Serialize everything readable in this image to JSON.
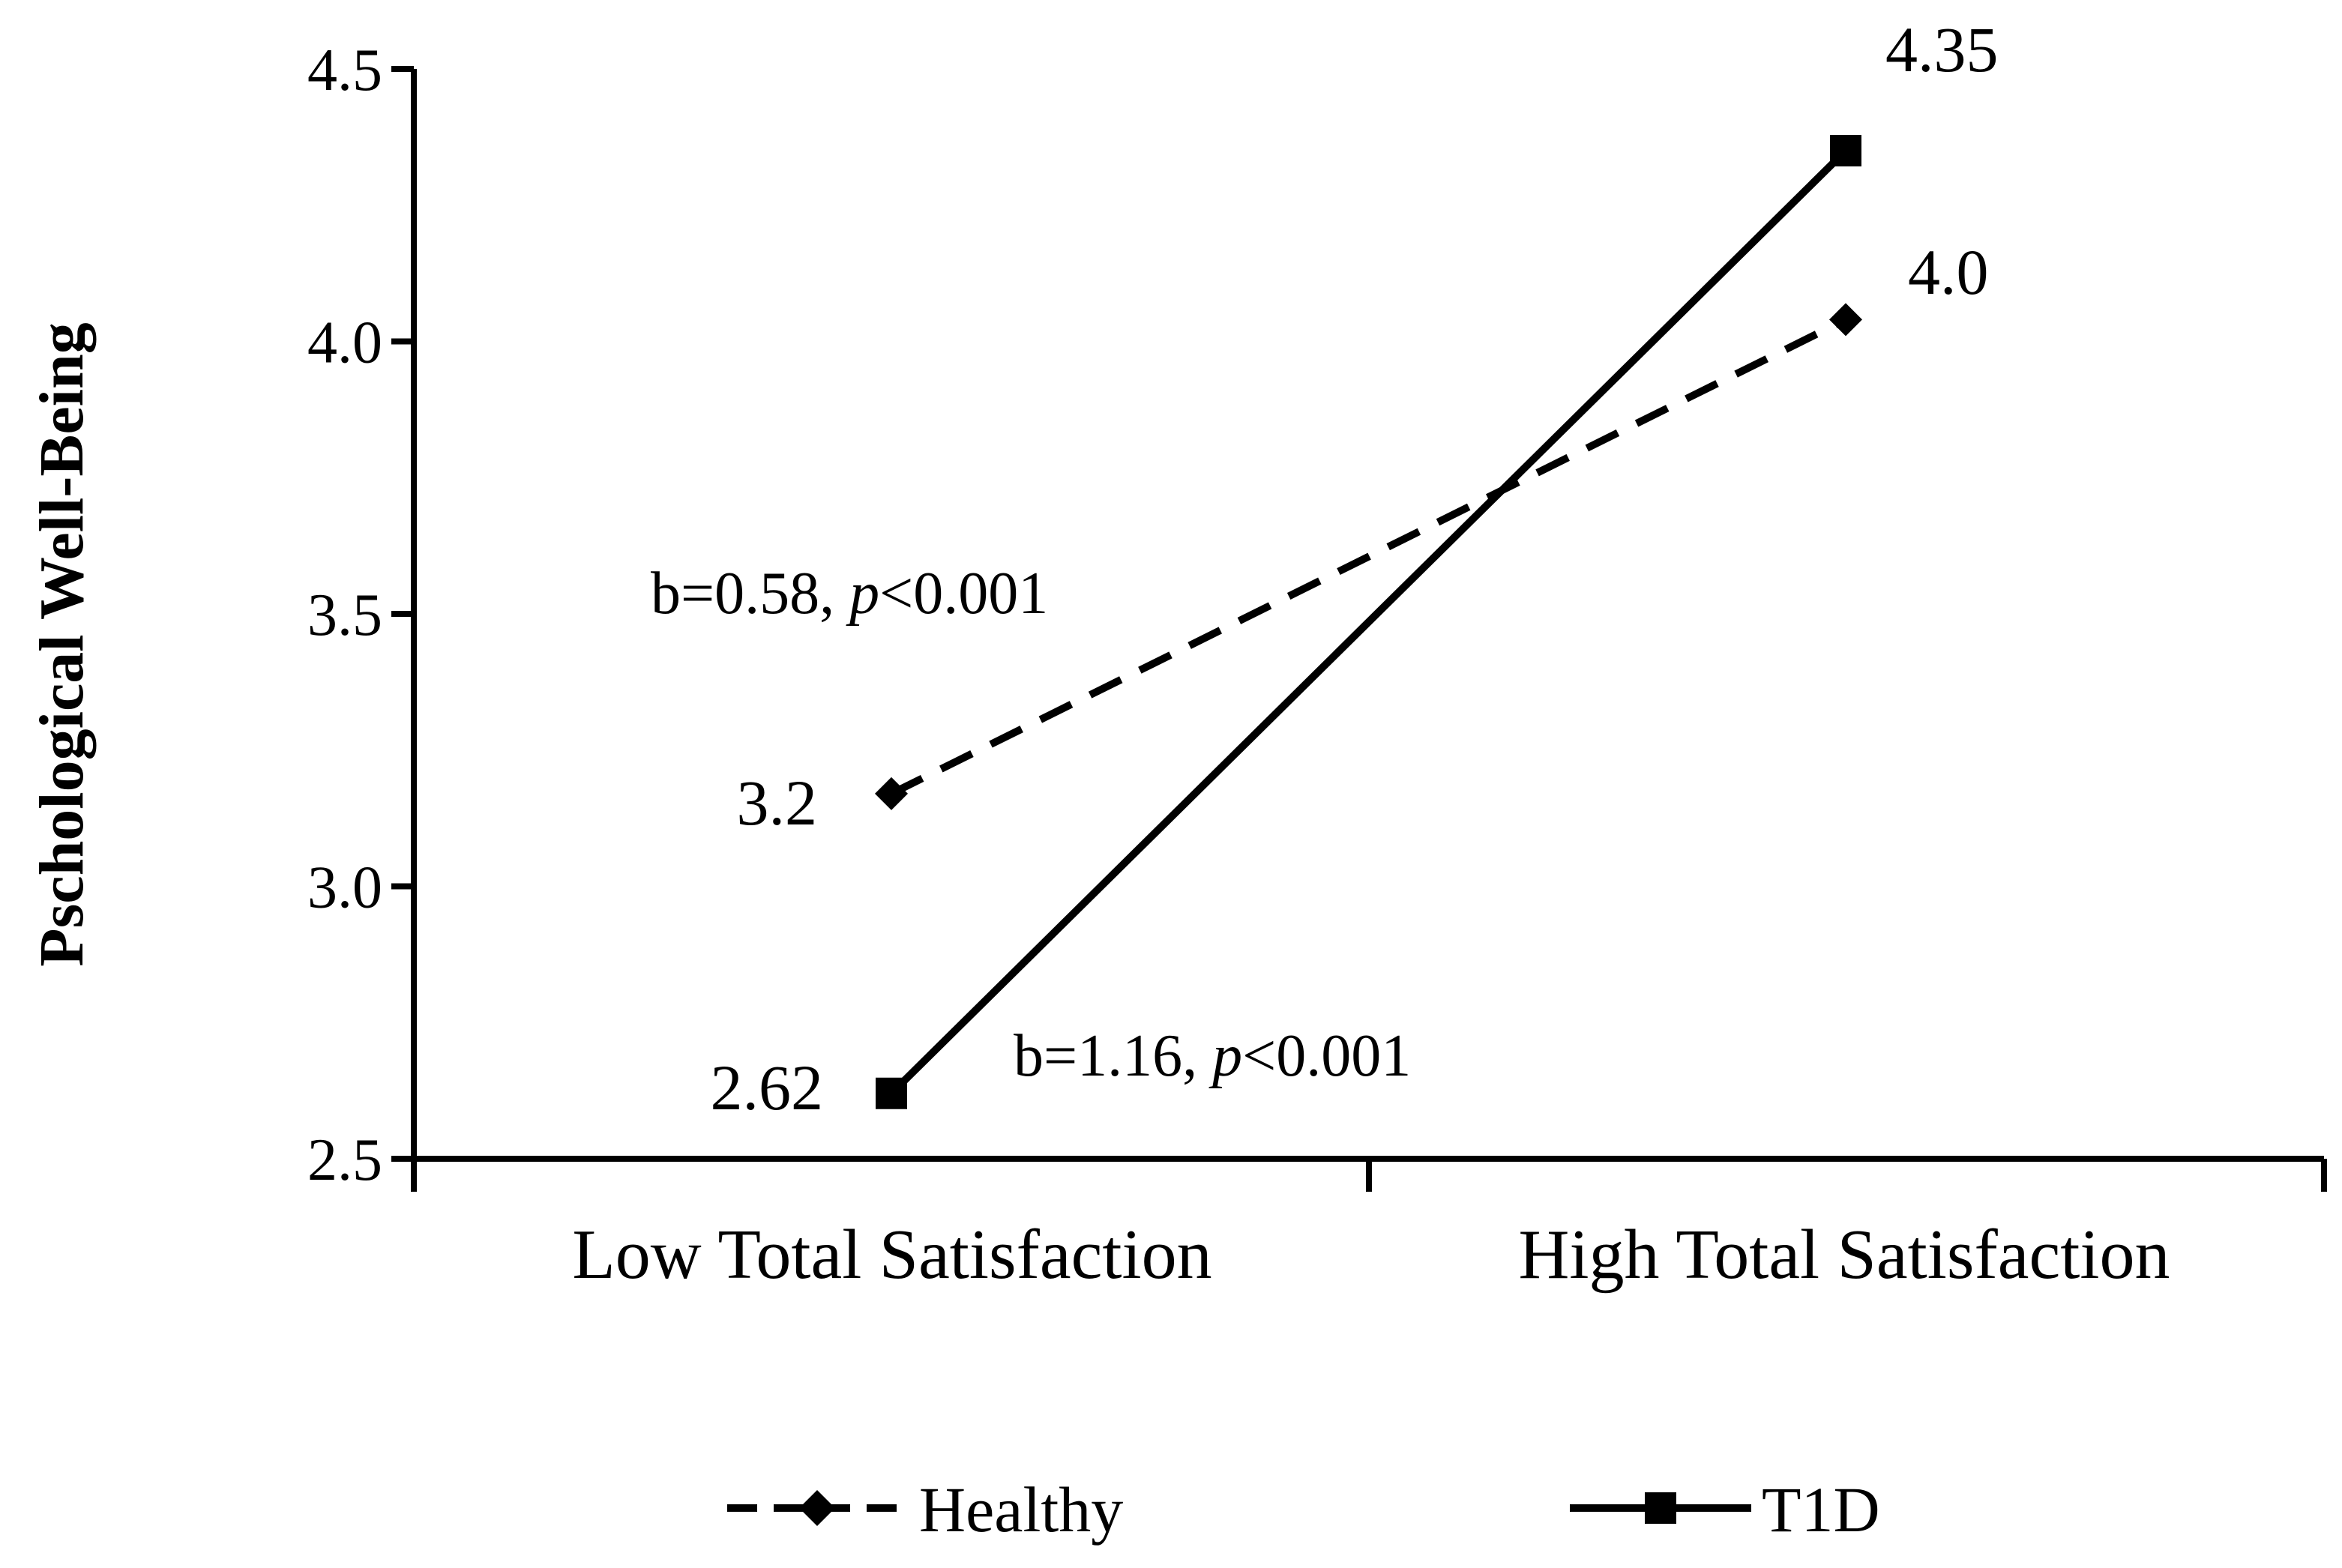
{
  "chart_data": {
    "type": "line",
    "title": "",
    "xlabel": "",
    "ylabel": "Pschological Well-Being",
    "ylim": [
      2.5,
      4.5
    ],
    "yticks": [
      "2.5",
      "3.0",
      "3.5",
      "4.0",
      "4.5"
    ],
    "categories": [
      "Low Total Satisfaction",
      "High Total Satisfaction"
    ],
    "series": [
      {
        "name": "Healthy",
        "style": "dashed",
        "marker": "diamond",
        "values": [
          3.17,
          4.04
        ],
        "labels": [
          "3.2",
          "4.0"
        ],
        "annotation": {
          "prefix": "b=0.58, ",
          "p": "p",
          "suffix": "<0.001"
        }
      },
      {
        "name": "T1D",
        "style": "solid",
        "marker": "square",
        "values": [
          2.62,
          4.35
        ],
        "labels": [
          "2.62",
          "4.35"
        ],
        "annotation": {
          "prefix": "b=1.16, ",
          "p": "p",
          "suffix": "<0.001"
        }
      }
    ],
    "legend_position": "bottom",
    "colors": {
      "line": "#000000",
      "background": "#ffffff"
    }
  }
}
